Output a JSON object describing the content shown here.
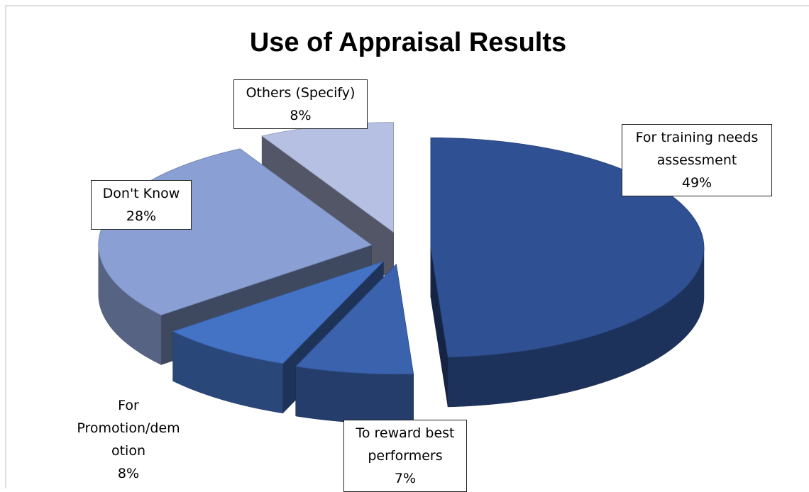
{
  "chart_data": {
    "type": "pie3d",
    "title": "Use of Appraisal Results",
    "categories": [
      "For training needs assessment",
      "To reward best performers",
      "For Promotion/demotion",
      "Don't Know",
      "Others (Specify)"
    ],
    "values": [
      49,
      7,
      8,
      28,
      8
    ],
    "value_labels": [
      "49%",
      "7%",
      "8%",
      "28%",
      "8%"
    ],
    "colors": [
      "#2f5193",
      "#3a62ad",
      "#4472c4",
      "#8a9fd3",
      "#b6c0e2"
    ],
    "exploded": true
  }
}
